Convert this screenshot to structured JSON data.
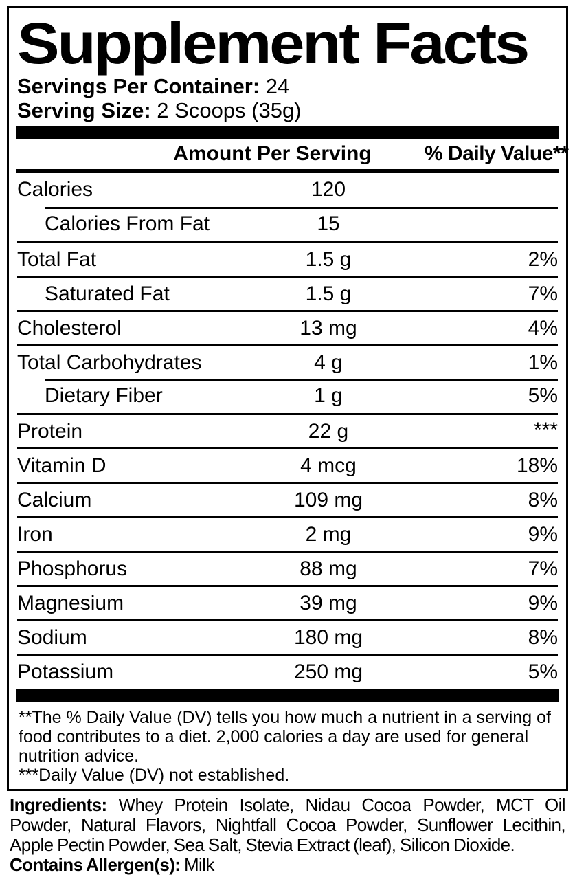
{
  "header": {
    "title": "Supplement Facts",
    "servings_per_container_label": "Servings Per Container:",
    "servings_per_container_value": " 24",
    "serving_size_label": "Serving Size:",
    "serving_size_value": " 2 Scoops (35g)"
  },
  "table": {
    "columns": {
      "amount": "Amount Per Serving",
      "daily_value": "% Daily Value**"
    },
    "rows": [
      {
        "name": "Calories",
        "amount": "120",
        "dv": ""
      },
      {
        "name": "Calories From Fat",
        "amount": "15",
        "dv": ""
      },
      {
        "name": "Total Fat",
        "amount": "1.5 g",
        "dv": "2%"
      },
      {
        "name": "Saturated Fat",
        "amount": "1.5 g",
        "dv": "7%"
      },
      {
        "name": "Cholesterol",
        "amount": "13 mg",
        "dv": "4%"
      },
      {
        "name": "Total Carbohydrates",
        "amount": "4 g",
        "dv": "1%"
      },
      {
        "name": "Dietary Fiber",
        "amount": "1 g",
        "dv": "5%"
      },
      {
        "name": "Protein",
        "amount": "22 g",
        "dv": "***"
      },
      {
        "name": "Vitamin D",
        "amount": "4 mcg",
        "dv": "18%"
      },
      {
        "name": "Calcium",
        "amount": "109 mg",
        "dv": "8%"
      },
      {
        "name": "Iron",
        "amount": "2 mg",
        "dv": "9%"
      },
      {
        "name": "Phosphorus",
        "amount": "88 mg",
        "dv": "7%"
      },
      {
        "name": "Magnesium",
        "amount": "39 mg",
        "dv": "9%"
      },
      {
        "name": "Sodium",
        "amount": "180 mg",
        "dv": "8%"
      },
      {
        "name": "Potassium",
        "amount": "250 mg",
        "dv": "5%"
      }
    ]
  },
  "footnotes": {
    "daily_value_note": "**The % Daily Value (DV) tells you how much a nutrient in a serving of food contributes to a diet. 2,000 calories a day are used for general nutrition advice.",
    "not_established_note": "***Daily Value (DV) not established."
  },
  "ingredients": {
    "label": "Ingredients:",
    "text": " Whey Protein Isolate, Nidau Cocoa Powder, MCT Oil Powder, Natural Flavors, Nightfall Cocoa Powder, Sunflower Lecithin, Apple Pectin Powder, Sea Salt, Stevia Extract (leaf), Silicon Dioxide.",
    "allergen_label": "Contains Allergen(s):",
    "allergen_value": " Milk"
  },
  "colors": {
    "foreground": "#000000",
    "background": "#ffffff"
  }
}
